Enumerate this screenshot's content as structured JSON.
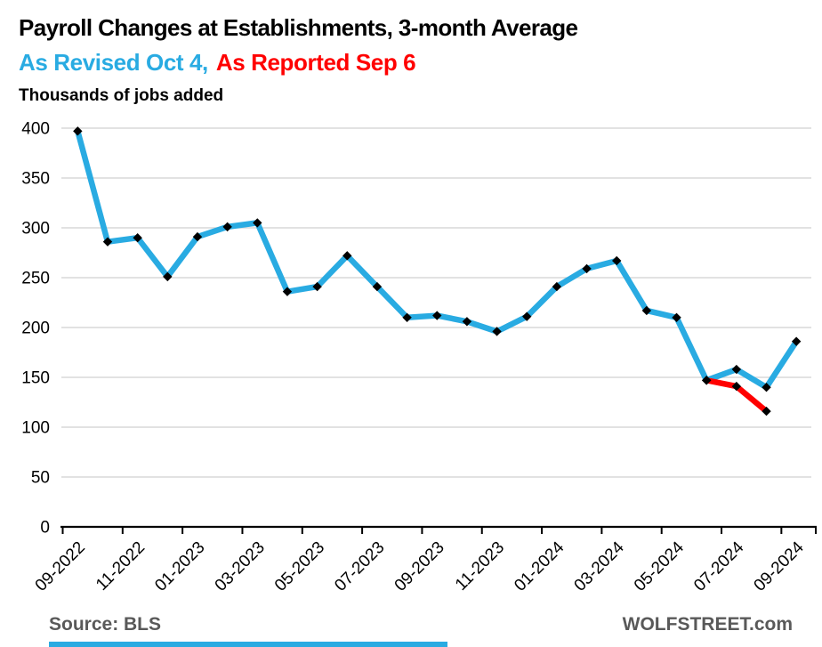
{
  "header": {
    "title": "Payroll Changes at Establishments, 3-month Average",
    "subtitle_revised": "As Revised Oct 4,",
    "subtitle_reported": "As Reported Sep 6",
    "units_label": "Thousands of jobs added"
  },
  "footer": {
    "source": "Source: BLS",
    "site": "WOLFSTREET.com"
  },
  "colors": {
    "title_text": "#000000",
    "revised_blue": "#29ABE2",
    "reported_red": "#FF0000",
    "gridline_gray": "#D9D9D9",
    "axis_black": "#000000",
    "marker_black": "#000000",
    "footer_gray": "#595959",
    "accent_bar_blue": "#29ABE2"
  },
  "chart_data": {
    "type": "line",
    "title": "Payroll Changes at Establishments, 3-month Average",
    "subtitle": "As Revised Oct 4, As Reported Sep 6",
    "ylabel": "Thousands of jobs added",
    "ylim": [
      0,
      400
    ],
    "yticks": [
      0,
      50,
      100,
      150,
      200,
      250,
      300,
      350,
      400
    ],
    "grid": "horizontal",
    "legend_position": "in-subtitle",
    "marker": "diamond",
    "x": [
      "09-2022",
      "10-2022",
      "11-2022",
      "12-2022",
      "01-2023",
      "02-2023",
      "03-2023",
      "04-2023",
      "05-2023",
      "06-2023",
      "07-2023",
      "08-2023",
      "09-2023",
      "10-2023",
      "11-2023",
      "12-2023",
      "01-2024",
      "02-2024",
      "03-2024",
      "04-2024",
      "05-2024",
      "06-2024",
      "07-2024",
      "08-2024",
      "09-2024"
    ],
    "xtick_labels": [
      "09-2022",
      "11-2022",
      "01-2023",
      "03-2023",
      "05-2023",
      "07-2023",
      "09-2023",
      "11-2023",
      "01-2024",
      "03-2024",
      "05-2024",
      "07-2024",
      "09-2024"
    ],
    "series": [
      {
        "name": "As Revised Oct 4",
        "color": "#29ABE2",
        "start_index": 0,
        "values": [
          397,
          286,
          290,
          251,
          291,
          301,
          305,
          236,
          241,
          272,
          241,
          210,
          212,
          206,
          196,
          211,
          241,
          259,
          267,
          217,
          210,
          147,
          158,
          140,
          186
        ]
      },
      {
        "name": "As Reported Sep 6",
        "color": "#FF0000",
        "start_index": 21,
        "values": [
          147,
          141,
          116
        ]
      }
    ]
  }
}
